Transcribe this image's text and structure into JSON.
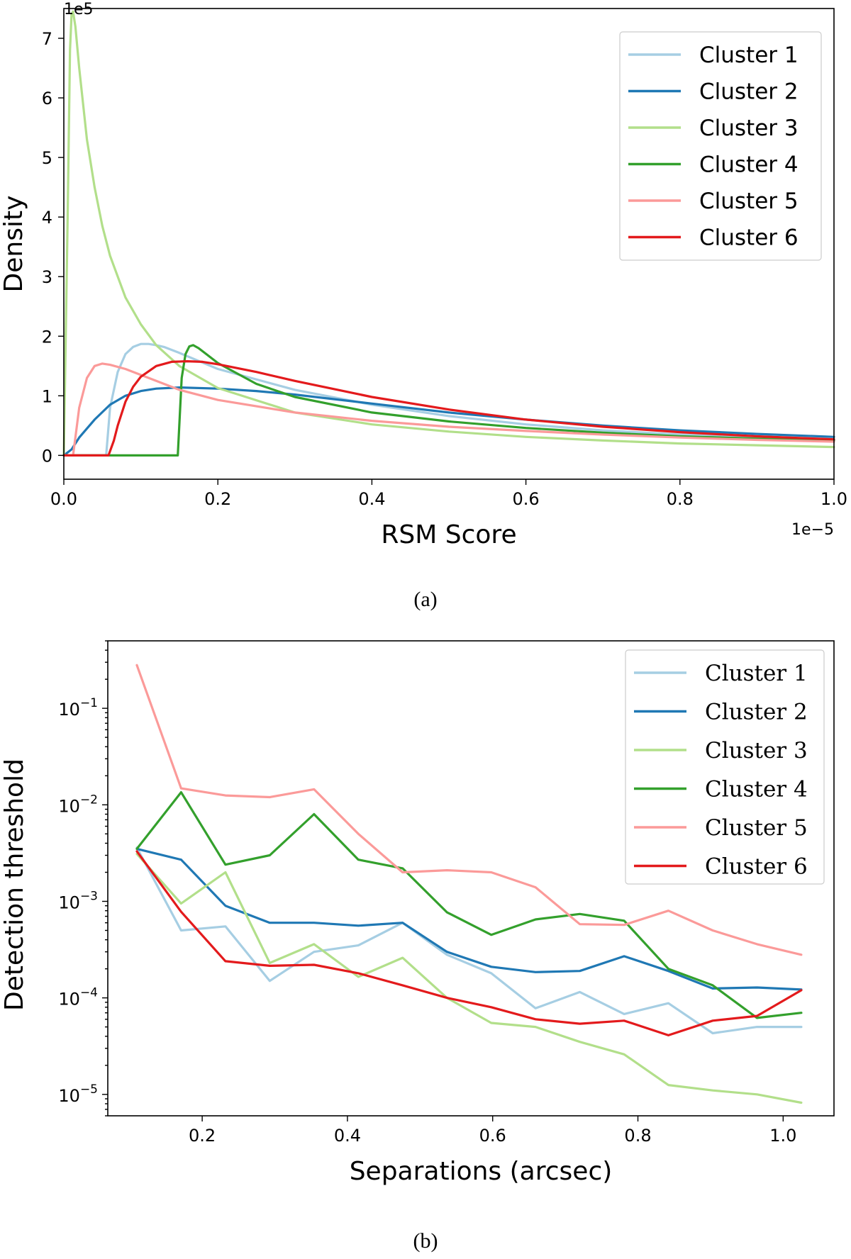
{
  "colors": {
    "c1": "#a6cee3",
    "c2": "#1f78b4",
    "c3": "#b2df8a",
    "c4": "#33a02c",
    "c5": "#fb9a99",
    "c6": "#e31a1c"
  },
  "chart_data": [
    {
      "type": "line",
      "caption": "(a)",
      "xlabel": "RSM Score",
      "ylabel": "Density",
      "x_offset_label": "1e−5",
      "y_offset_label": "1e5",
      "xlim": [
        0,
        1.0
      ],
      "ylim": [
        -0.4,
        7.5
      ],
      "xticks": [
        0.0,
        0.2,
        0.4,
        0.6,
        0.8,
        1.0
      ],
      "xtick_labels": [
        "0.0",
        "0.2",
        "0.4",
        "0.6",
        "0.8",
        "1.0"
      ],
      "yticks": [
        0,
        1,
        2,
        3,
        4,
        5,
        6,
        7
      ],
      "ytick_labels": [
        "0",
        "1",
        "2",
        "3",
        "4",
        "5",
        "6",
        "7"
      ],
      "grid": false,
      "legend_position": "top-right",
      "series": [
        {
          "name": "Cluster 1",
          "color": "#a6cee3",
          "x": [
            0,
            0.055,
            0.06,
            0.07,
            0.08,
            0.09,
            0.1,
            0.11,
            0.12,
            0.13,
            0.15,
            0.2,
            0.3,
            0.4,
            0.5,
            0.6,
            0.7,
            0.8,
            0.9,
            1.0
          ],
          "y": [
            0,
            0,
            0.8,
            1.4,
            1.7,
            1.82,
            1.87,
            1.87,
            1.85,
            1.82,
            1.72,
            1.45,
            1.1,
            0.85,
            0.66,
            0.52,
            0.42,
            0.35,
            0.3,
            0.26
          ]
        },
        {
          "name": "Cluster 2",
          "color": "#1f78b4",
          "x": [
            0,
            0.01,
            0.02,
            0.04,
            0.06,
            0.08,
            0.1,
            0.12,
            0.15,
            0.2,
            0.25,
            0.3,
            0.4,
            0.5,
            0.6,
            0.7,
            0.8,
            0.9,
            1.0
          ],
          "y": [
            0,
            0.1,
            0.3,
            0.6,
            0.85,
            1.0,
            1.08,
            1.12,
            1.14,
            1.12,
            1.08,
            1.02,
            0.87,
            0.72,
            0.6,
            0.5,
            0.42,
            0.36,
            0.31
          ]
        },
        {
          "name": "Cluster 3",
          "color": "#b2df8a",
          "x": [
            0,
            0.005,
            0.008,
            0.01,
            0.012,
            0.015,
            0.02,
            0.03,
            0.04,
            0.05,
            0.06,
            0.08,
            0.1,
            0.12,
            0.15,
            0.2,
            0.3,
            0.4,
            0.5,
            0.6,
            0.7,
            0.8,
            0.9,
            1.0
          ],
          "y": [
            0,
            4.0,
            6.8,
            7.4,
            7.45,
            7.2,
            6.5,
            5.3,
            4.5,
            3.85,
            3.35,
            2.65,
            2.2,
            1.85,
            1.5,
            1.13,
            0.72,
            0.52,
            0.4,
            0.31,
            0.25,
            0.2,
            0.17,
            0.14
          ]
        },
        {
          "name": "Cluster 4",
          "color": "#33a02c",
          "x": [
            0,
            0.148,
            0.153,
            0.158,
            0.163,
            0.168,
            0.175,
            0.185,
            0.2,
            0.25,
            0.3,
            0.4,
            0.5,
            0.6,
            0.7,
            0.8,
            0.9,
            1.0
          ],
          "y": [
            0,
            0,
            1.3,
            1.7,
            1.83,
            1.85,
            1.8,
            1.7,
            1.55,
            1.2,
            0.98,
            0.72,
            0.57,
            0.46,
            0.38,
            0.32,
            0.28,
            0.25
          ]
        },
        {
          "name": "Cluster 5",
          "color": "#fb9a99",
          "x": [
            0,
            0.012,
            0.015,
            0.02,
            0.03,
            0.04,
            0.05,
            0.06,
            0.08,
            0.1,
            0.15,
            0.2,
            0.3,
            0.4,
            0.5,
            0.6,
            0.7,
            0.8,
            0.9,
            1.0
          ],
          "y": [
            0,
            0,
            0.3,
            0.8,
            1.3,
            1.5,
            1.54,
            1.52,
            1.45,
            1.35,
            1.1,
            0.93,
            0.72,
            0.58,
            0.48,
            0.41,
            0.35,
            0.3,
            0.26,
            0.23
          ]
        },
        {
          "name": "Cluster 6",
          "color": "#e31a1c",
          "x": [
            0,
            0.058,
            0.065,
            0.07,
            0.08,
            0.09,
            0.1,
            0.12,
            0.14,
            0.16,
            0.18,
            0.2,
            0.25,
            0.3,
            0.4,
            0.5,
            0.6,
            0.7,
            0.8,
            0.9,
            1.0
          ],
          "y": [
            0,
            0,
            0.25,
            0.5,
            0.9,
            1.15,
            1.32,
            1.5,
            1.57,
            1.58,
            1.57,
            1.53,
            1.4,
            1.25,
            0.98,
            0.77,
            0.6,
            0.48,
            0.39,
            0.32,
            0.27
          ]
        }
      ]
    },
    {
      "type": "line",
      "caption": "(b)",
      "xlabel": "Separations (arcsec)",
      "ylabel": "Detection threshold",
      "xlim": [
        0.07,
        1.07
      ],
      "ylog": true,
      "ylim": [
        6e-06,
        0.5
      ],
      "xticks": [
        0.2,
        0.4,
        0.6,
        0.8,
        1.0
      ],
      "xtick_labels": [
        "0.2",
        "0.4",
        "0.6",
        "0.8",
        "1.0"
      ],
      "yticks": [
        1e-05,
        0.0001,
        0.001,
        0.01,
        0.1
      ],
      "ytick_labels": [
        {
          "base": "10",
          "exp": "−5"
        },
        {
          "base": "10",
          "exp": "−4"
        },
        {
          "base": "10",
          "exp": "−3"
        },
        {
          "base": "10",
          "exp": "−2"
        },
        {
          "base": "10",
          "exp": "−1"
        }
      ],
      "grid": false,
      "legend_position": "top-right",
      "x": [
        0.11,
        0.171,
        0.232,
        0.293,
        0.354,
        0.415,
        0.476,
        0.537,
        0.598,
        0.659,
        0.72,
        0.781,
        0.842,
        0.903,
        0.964,
        1.025
      ],
      "series": [
        {
          "name": "Cluster 1",
          "color": "#a6cee3",
          "values": [
            0.0036,
            0.0005,
            0.00055,
            0.00015,
            0.0003,
            0.00035,
            0.0006,
            0.00028,
            0.00018,
            7.8e-05,
            0.000115,
            6.8e-05,
            8.8e-05,
            4.3e-05,
            5e-05,
            5e-05
          ]
        },
        {
          "name": "Cluster 2",
          "color": "#1f78b4",
          "values": [
            0.0035,
            0.0027,
            0.0009,
            0.0006,
            0.0006,
            0.00056,
            0.0006,
            0.0003,
            0.00021,
            0.000185,
            0.00019,
            0.00027,
            0.00019,
            0.000125,
            0.000128,
            0.000122
          ]
        },
        {
          "name": "Cluster 3",
          "color": "#b2df8a",
          "values": [
            0.0031,
            0.00095,
            0.002,
            0.00023,
            0.00036,
            0.000165,
            0.00026,
            0.0001,
            5.5e-05,
            5e-05,
            3.5e-05,
            2.6e-05,
            1.25e-05,
            1.1e-05,
            1e-05,
            8.2e-06
          ]
        },
        {
          "name": "Cluster 4",
          "color": "#33a02c",
          "values": [
            0.0035,
            0.0135,
            0.0024,
            0.003,
            0.008,
            0.0027,
            0.0022,
            0.00077,
            0.00045,
            0.00065,
            0.00074,
            0.00063,
            0.0002,
            0.000135,
            6.2e-05,
            7e-05
          ]
        },
        {
          "name": "Cluster 5",
          "color": "#fb9a99",
          "values": [
            0.28,
            0.0148,
            0.0125,
            0.012,
            0.0145,
            0.005,
            0.002,
            0.0021,
            0.002,
            0.0014,
            0.00058,
            0.00057,
            0.0008,
            0.0005,
            0.00036,
            0.00028
          ]
        },
        {
          "name": "Cluster 6",
          "color": "#e31a1c",
          "values": [
            0.0033,
            0.00078,
            0.00024,
            0.000215,
            0.00022,
            0.00018,
            0.000135,
            0.0001,
            8e-05,
            6e-05,
            5.4e-05,
            5.8e-05,
            4.1e-05,
            5.8e-05,
            6.5e-05,
            0.00012
          ]
        }
      ]
    }
  ]
}
